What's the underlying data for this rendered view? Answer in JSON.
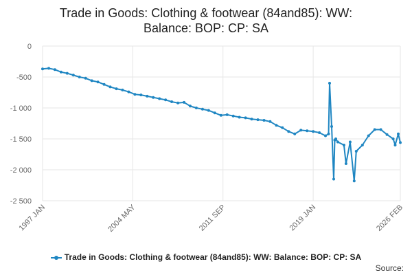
{
  "colors": {
    "series": "#1f86c2",
    "grid": "#e6e6e6",
    "axis_text": "#666666"
  },
  "source_label": "Source:",
  "chart_data": {
    "type": "line",
    "title": "Trade in Goods: Clothing & footwear (84and85): WW: Balance: BOP: CP: SA",
    "title_lines": [
      "Trade in Goods: Clothing & footwear (84and85): WW:",
      "Balance: BOP: CP: SA"
    ],
    "xlabel": "",
    "ylabel": "",
    "x_ticks": [
      "1997 JAN",
      "2004 MAY",
      "2011 SEP",
      "2019 JAN",
      "2026 FEB"
    ],
    "y_ticks": [
      "0",
      "-500",
      "-1 000",
      "-1 500",
      "-2 000",
      "-2 500"
    ],
    "ylim": [
      -2500,
      0
    ],
    "x_range": [
      "1997 JAN",
      "2026 FEB"
    ],
    "grid": true,
    "legend_position": "bottom",
    "series": [
      {
        "name": "Trade in Goods: Clothing & footwear (84and85): WW: Balance: BOP: CP: SA",
        "frequency": "monthly",
        "x": [
          "1997 JAN",
          "1997 JUL",
          "1998 JAN",
          "1998 JUL",
          "1999 JAN",
          "1999 JUL",
          "2000 JAN",
          "2000 JUL",
          "2001 JAN",
          "2001 JUL",
          "2002 JAN",
          "2002 JUL",
          "2003 JAN",
          "2003 JUL",
          "2004 JAN",
          "2004 JUL",
          "2005 JAN",
          "2005 JUL",
          "2006 JAN",
          "2006 JUL",
          "2007 JAN",
          "2007 JUL",
          "2008 JAN",
          "2008 JUL",
          "2009 JAN",
          "2009 JUL",
          "2010 JAN",
          "2010 JUL",
          "2011 JAN",
          "2011 JUL",
          "2012 JAN",
          "2012 JUL",
          "2013 JAN",
          "2013 JUL",
          "2014 JAN",
          "2014 JUL",
          "2015 JAN",
          "2015 JUL",
          "2016 JAN",
          "2016 JUL",
          "2017 JAN",
          "2017 JUL",
          "2018 JAN",
          "2018 JUL",
          "2019 JAN",
          "2019 JUL",
          "2020 JAN",
          "2020 APR",
          "2020 MAY",
          "2020 JUL",
          "2020 SEP",
          "2020 OCT",
          "2020 NOV",
          "2021 JAN",
          "2021 JUL",
          "2021 SEP",
          "2022 JAN",
          "2022 MAY",
          "2022 JUL",
          "2023 JAN",
          "2023 JUL",
          "2024 JAN",
          "2024 JUL",
          "2025 JAN",
          "2025 JUL",
          "2025 SEP",
          "2025 DEC",
          "2026 FEB"
        ],
        "values": [
          -370,
          -360,
          -380,
          -420,
          -440,
          -470,
          -500,
          -520,
          -560,
          -580,
          -620,
          -660,
          -690,
          -710,
          -740,
          -780,
          -790,
          -810,
          -830,
          -850,
          -870,
          -900,
          -920,
          -910,
          -970,
          -1000,
          -1020,
          -1040,
          -1080,
          -1120,
          -1110,
          -1130,
          -1150,
          -1160,
          -1180,
          -1190,
          -1200,
          -1220,
          -1280,
          -1320,
          -1380,
          -1420,
          -1360,
          -1370,
          -1380,
          -1400,
          -1450,
          -1420,
          -600,
          -1300,
          -2150,
          -1520,
          -1500,
          -1550,
          -1600,
          -1900,
          -1550,
          -2180,
          -1700,
          -1600,
          -1450,
          -1350,
          -1350,
          -1430,
          -1500,
          -1600,
          -1420,
          -1560
        ]
      }
    ]
  }
}
